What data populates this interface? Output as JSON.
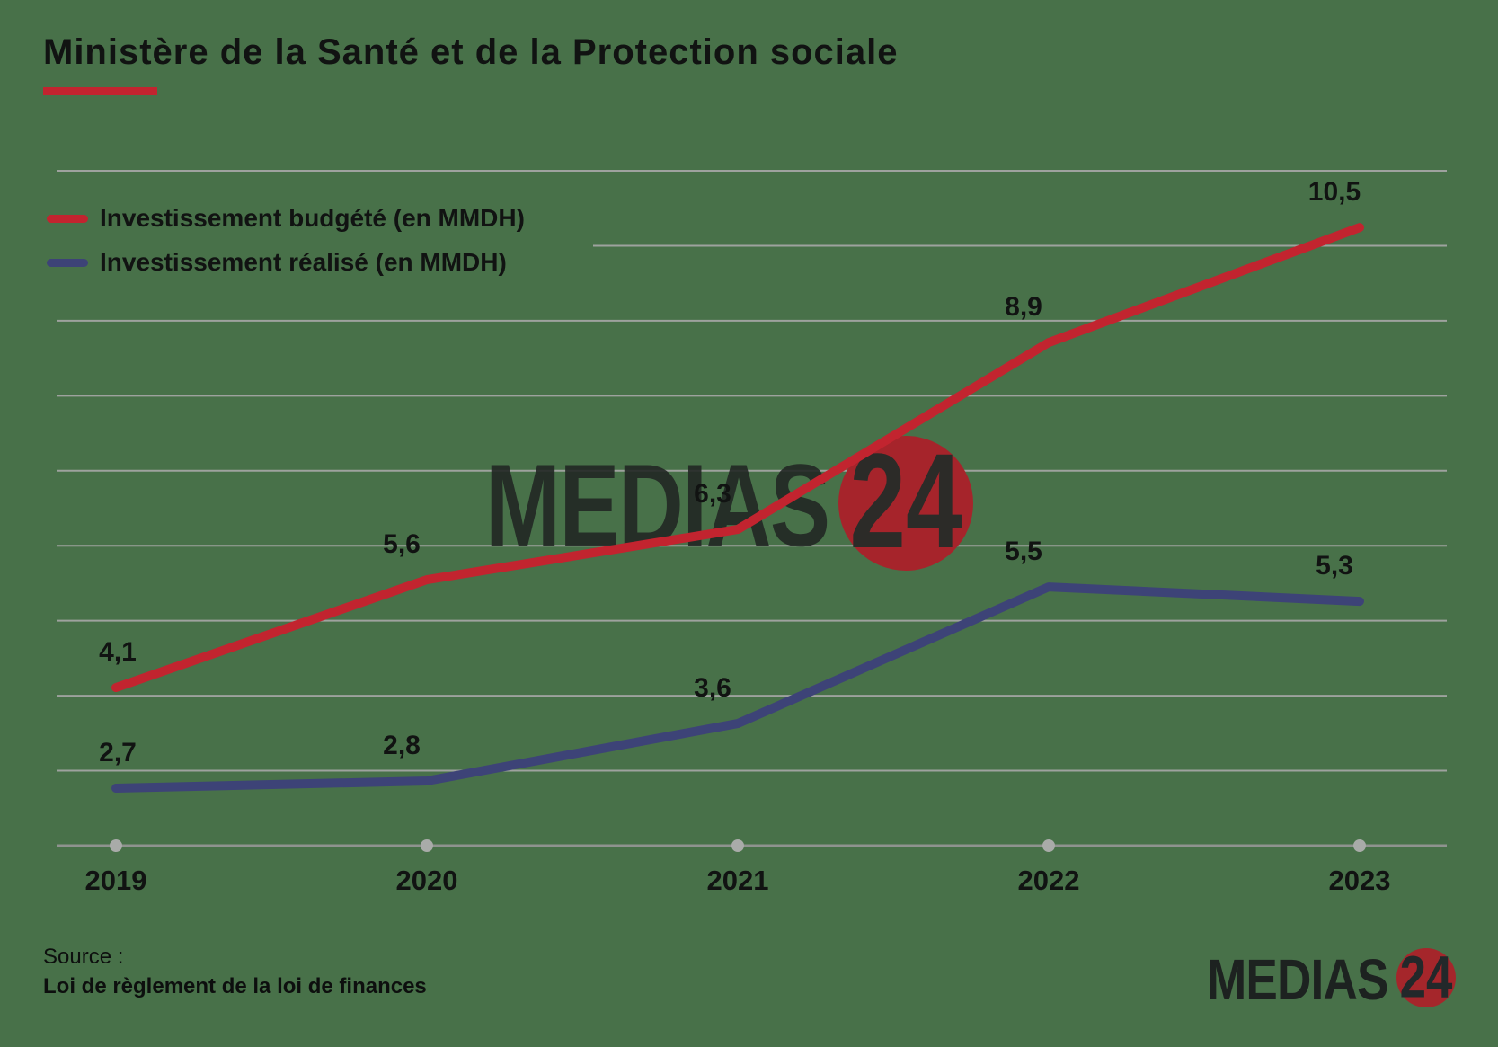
{
  "title": "Ministère de la Santé et de la Protection sociale",
  "legend": [
    {
      "label": "Investissement budgété (en MMDH)",
      "color": "#c2242f"
    },
    {
      "label": "Investissement réalisé (en MMDH)",
      "color": "#3d4377"
    }
  ],
  "chart_data": {
    "type": "line",
    "title": "Ministère de la Santé et de la Protection sociale",
    "categories": [
      "2019",
      "2020",
      "2021",
      "2022",
      "2023"
    ],
    "series": [
      {
        "name": "Investissement budgété (en MMDH)",
        "color": "#c2242f",
        "values": [
          4.1,
          5.6,
          6.3,
          8.9,
          10.5
        ]
      },
      {
        "name": "Investissement réalisé (en MMDH)",
        "color": "#3d4377",
        "values": [
          2.7,
          2.8,
          3.6,
          5.5,
          5.3
        ]
      }
    ],
    "xlabel": "",
    "ylabel": "",
    "ylim": [
      1.9,
      11.29
    ],
    "grid": "horizontal",
    "gridline_count": 10,
    "legend_position": "top-left",
    "data_labels": "decimal-comma"
  },
  "watermark": {
    "text": "MEDIAS",
    "number": "24"
  },
  "logo": {
    "text": "MEDIAS",
    "number": "24"
  },
  "source": {
    "label": "Source :",
    "text": "Loi de règlement de la loi de finances"
  },
  "colors": {
    "background": "#487149",
    "accent": "#c2242f",
    "navy": "#3d4377",
    "text": "#111312",
    "grid": "#9ea29e",
    "axis": "#8f938f",
    "tick_dot": "#a9aba9",
    "watermark_red": "#a6242b",
    "logo_red": "#a5262b"
  }
}
